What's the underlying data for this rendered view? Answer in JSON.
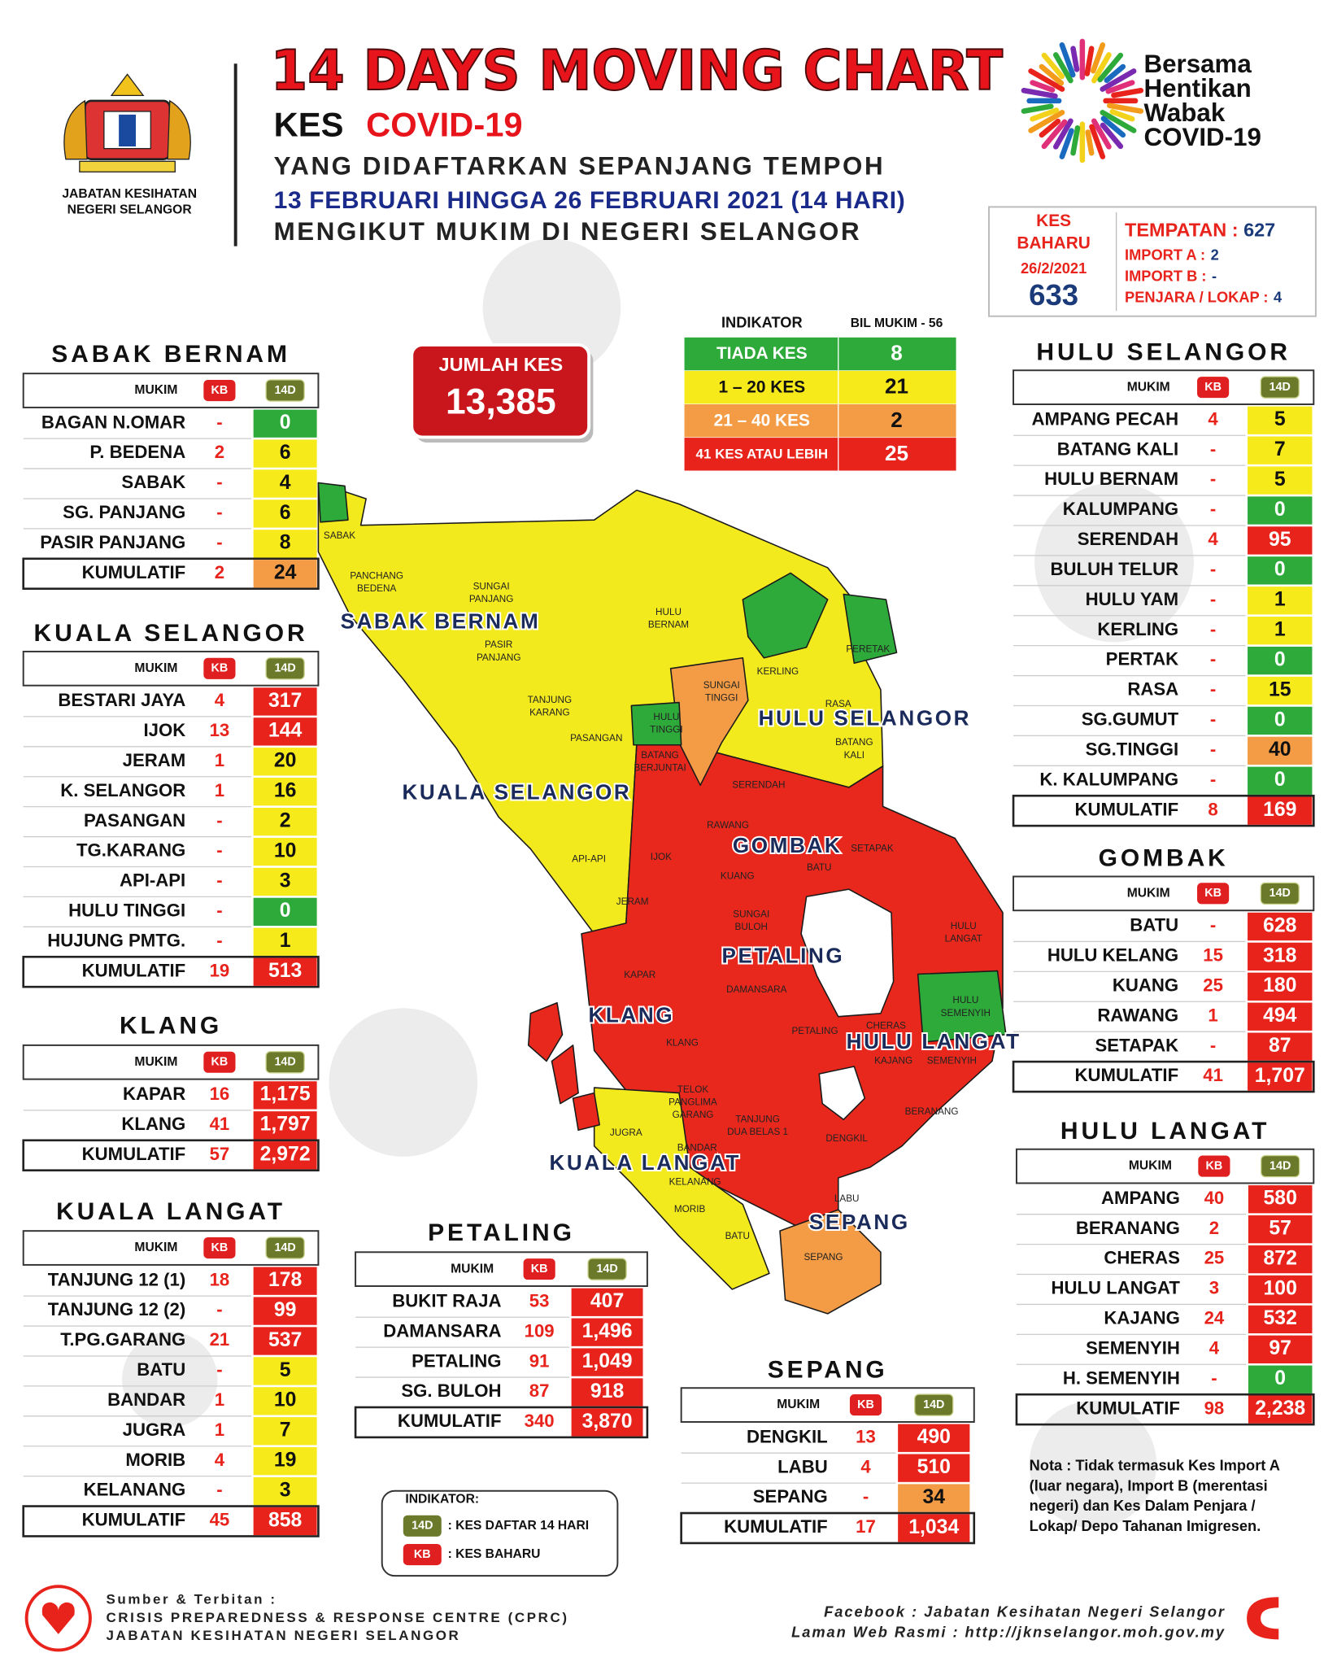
{
  "header": {
    "title": "14 DAYS MOVING CHART",
    "kes": "KES",
    "covid": "COVID-19",
    "line1": "YANG DIDAFTARKAN SEPANJANG TEMPOH",
    "line2": "13 FEBRUARI HINGGA 26 FEBRUARI 2021 (14 HARI)",
    "line3": "MENGIKUT MUKIM DI NEGERI SELANGOR",
    "agency": [
      "JABATAN KESIHATAN",
      "NEGERI SELANGOR"
    ],
    "campaign": [
      "Bersama",
      "Hentikan",
      "Wabak",
      "COVID-19"
    ]
  },
  "summary": {
    "label": [
      "KES",
      "BAHARU"
    ],
    "date": "26/2/2021",
    "total": "633",
    "items": [
      {
        "label": "TEMPATAN :",
        "value": "627"
      },
      {
        "label": "IMPORT A :",
        "value": "2"
      },
      {
        "label": "IMPORT B :",
        "value": "-"
      },
      {
        "label": "PENJARA / LOKAP :",
        "value": "4"
      }
    ]
  },
  "jumlah": {
    "label": "JUMLAH KES",
    "value": "13,385"
  },
  "indicator": {
    "header": [
      "INDIKATOR",
      "BIL MUKIM - 56"
    ],
    "rows": [
      {
        "label": "TIADA KES",
        "count": "8",
        "color": "#2eaa3a"
      },
      {
        "label": "1 – 20 KES",
        "count": "21",
        "color": "#f7ea1a"
      },
      {
        "label": "21 – 40 KES",
        "count": "2",
        "color": "#f39c45"
      },
      {
        "label": "41 KES ATAU LEBIH",
        "count": "25",
        "color": "#e8231c"
      }
    ]
  },
  "columns": [
    "MUKIM",
    "KB",
    "14D"
  ],
  "total_label": "KUMULATIF",
  "tables": [
    {
      "name": "SABAK BERNAM",
      "rows": [
        [
          "BAGAN N.OMAR",
          "-",
          "0"
        ],
        [
          "P. BEDENA",
          "2",
          "6"
        ],
        [
          "SABAK",
          "-",
          "4"
        ],
        [
          "SG. PANJANG",
          "-",
          "6"
        ],
        [
          "PASIR PANJANG",
          "-",
          "8"
        ]
      ],
      "total": [
        "2",
        "24"
      ]
    },
    {
      "name": "KUALA SELANGOR",
      "rows": [
        [
          "BESTARI JAYA",
          "4",
          "317"
        ],
        [
          "IJOK",
          "13",
          "144"
        ],
        [
          "JERAM",
          "1",
          "20"
        ],
        [
          "K. SELANGOR",
          "1",
          "16"
        ],
        [
          "PASANGAN",
          "-",
          "2"
        ],
        [
          "TG.KARANG",
          "-",
          "10"
        ],
        [
          "API-API",
          "-",
          "3"
        ],
        [
          "HULU TINGGI",
          "-",
          "0"
        ],
        [
          "HUJUNG PMTG.",
          "-",
          "1"
        ]
      ],
      "total": [
        "19",
        "513"
      ]
    },
    {
      "name": "KLANG",
      "rows": [
        [
          "KAPAR",
          "16",
          "1,175"
        ],
        [
          "KLANG",
          "41",
          "1,797"
        ]
      ],
      "total": [
        "57",
        "2,972"
      ]
    },
    {
      "name": "KUALA LANGAT",
      "rows": [
        [
          "TANJUNG 12 (1)",
          "18",
          "178"
        ],
        [
          "TANJUNG 12 (2)",
          "-",
          "99"
        ],
        [
          "T.PG.GARANG",
          "21",
          "537"
        ],
        [
          "BATU",
          "-",
          "5"
        ],
        [
          "BANDAR",
          "1",
          "10"
        ],
        [
          "JUGRA",
          "1",
          "7"
        ],
        [
          "MORIB",
          "4",
          "19"
        ],
        [
          "KELANANG",
          "-",
          "3"
        ]
      ],
      "total": [
        "45",
        "858"
      ]
    },
    {
      "name": "PETALING",
      "rows": [
        [
          "BUKIT RAJA",
          "53",
          "407"
        ],
        [
          "DAMANSARA",
          "109",
          "1,496"
        ],
        [
          "PETALING",
          "91",
          "1,049"
        ],
        [
          "SG. BULOH",
          "87",
          "918"
        ]
      ],
      "total": [
        "340",
        "3,870"
      ]
    },
    {
      "name": "SEPANG",
      "rows": [
        [
          "DENGKIL",
          "13",
          "490"
        ],
        [
          "LABU",
          "4",
          "510"
        ],
        [
          "SEPANG",
          "-",
          "34"
        ]
      ],
      "total": [
        "17",
        "1,034"
      ]
    },
    {
      "name": "HULU SELANGOR",
      "rows": [
        [
          "AMPANG PECAH",
          "4",
          "5"
        ],
        [
          "BATANG KALI",
          "-",
          "7"
        ],
        [
          "HULU BERNAM",
          "-",
          "5"
        ],
        [
          "KALUMPANG",
          "-",
          "0"
        ],
        [
          "SERENDAH",
          "4",
          "95"
        ],
        [
          "BULUH TELUR",
          "-",
          "0"
        ],
        [
          "HULU YAM",
          "-",
          "1"
        ],
        [
          "KERLING",
          "-",
          "1"
        ],
        [
          "PERTAK",
          "-",
          "0"
        ],
        [
          "RASA",
          "-",
          "15"
        ],
        [
          "SG.GUMUT",
          "-",
          "0"
        ],
        [
          "SG.TINGGI",
          "-",
          "40"
        ],
        [
          "K. KALUMPANG",
          "-",
          "0"
        ]
      ],
      "total": [
        "8",
        "169"
      ]
    },
    {
      "name": "GOMBAK",
      "rows": [
        [
          "BATU",
          "-",
          "628"
        ],
        [
          "HULU KELANG",
          "15",
          "318"
        ],
        [
          "KUANG",
          "25",
          "180"
        ],
        [
          "RAWANG",
          "1",
          "494"
        ],
        [
          "SETAPAK",
          "-",
          "87"
        ]
      ],
      "total": [
        "41",
        "1,707"
      ]
    },
    {
      "name": "HULU LANGAT",
      "rows": [
        [
          "AMPANG",
          "40",
          "580"
        ],
        [
          "BERANANG",
          "2",
          "57"
        ],
        [
          "CHERAS",
          "25",
          "872"
        ],
        [
          "HULU LANGAT",
          "3",
          "100"
        ],
        [
          "KAJANG",
          "24",
          "532"
        ],
        [
          "SEMENYIH",
          "4",
          "97"
        ],
        [
          "H. SEMENYIH",
          "-",
          "0"
        ]
      ],
      "total": [
        "98",
        "2,238"
      ]
    }
  ],
  "map": {
    "regions": [
      "SABAK BERNAM",
      "KUALA SELANGOR",
      "HULU SELANGOR",
      "GOMBAK",
      "PETALING",
      "KLANG",
      "HULU LANGAT",
      "KUALA LANGAT",
      "SEPANG"
    ],
    "labels": [
      "SABAK",
      "PANCHANG",
      "BEDENA",
      "SUNGAI",
      "PANJANG",
      "HULU",
      "BERNAM",
      "PASIR",
      "PANJANG",
      "TANJUNG",
      "KARANG",
      "SUNGAI",
      "TINGGI",
      "HULU",
      "TINGGI",
      "KERLING",
      "PERETAK",
      "RASA",
      "BATANG",
      "KALI",
      "SERENDAH",
      "PASANGAN",
      "BATANG",
      "BERJUNTAI",
      "RAWANG",
      "IJOK",
      "API-API",
      "JERAM",
      "KUANG",
      "BATU",
      "SETAPAK",
      "SUNGAI",
      "BULOH",
      "HULU",
      "LANGAT",
      "KAPAR",
      "DAMANSARA",
      "KLANG",
      "PETALING",
      "CHERAS",
      "KAJANG",
      "SEMENYIH",
      "HULU",
      "SEMENYIH",
      "BERANANG",
      "DENGKIL",
      "TELOK",
      "PANGLIMA",
      "GARANG",
      "TANJUNG",
      "DUA BELAS 1",
      "JUGRA",
      "BANDAR",
      "KELANANG",
      "MORIB",
      "BATU",
      "LABU",
      "SEPANG"
    ]
  },
  "legend": {
    "title": "INDIKATOR:",
    "items": [
      {
        "badge": "14D",
        "text": ": KES DAFTAR 14 HARI"
      },
      {
        "badge": "KB",
        "text": ": KES BAHARU"
      }
    ]
  },
  "note": [
    "Nota : Tidak termasuk Kes Import A",
    "(luar negara), Import B (merentasi",
    "negeri) dan Kes Dalam Penjara /",
    "Lokap/ Depo Tahanan Imigresen."
  ],
  "footer": {
    "left": [
      "Sumber & Terbitan :",
      "CRISIS PREPAREDNESS & RESPONSE CENTRE (CPRC)",
      "JABATAN KESIHATAN NEGERI SELANGOR"
    ],
    "right": [
      "Facebook : Jabatan Kesihatan Negeri Selangor",
      "Laman Web Rasmi : http://jknselangor.moh.gov.my"
    ]
  }
}
